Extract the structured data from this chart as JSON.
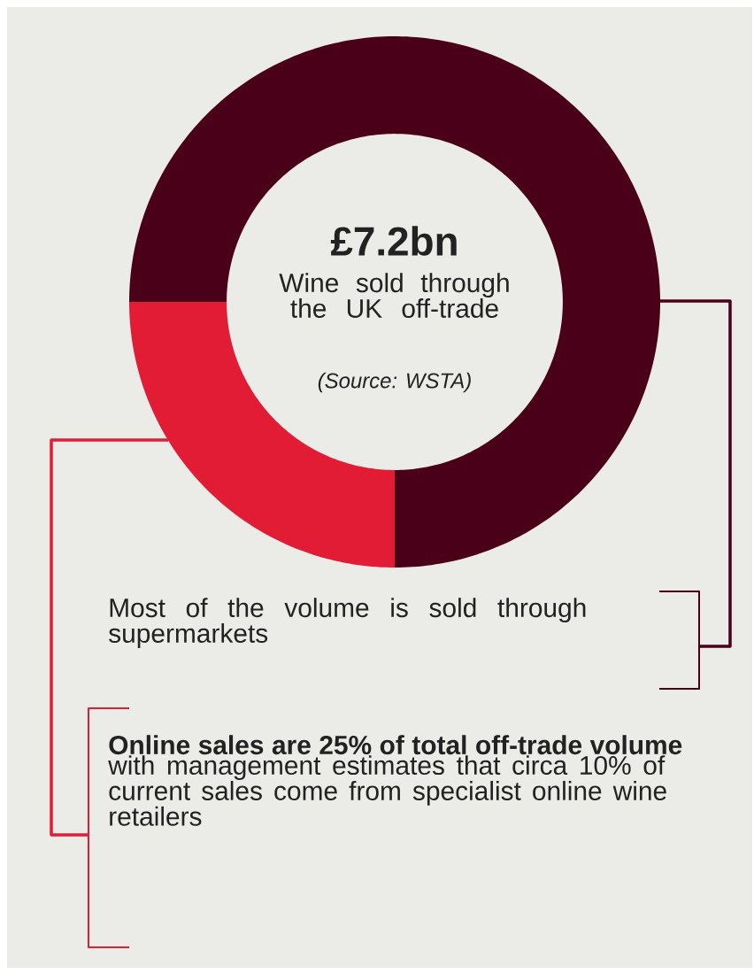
{
  "chart_data": {
    "type": "donut",
    "categories": [
      null,
      null
    ],
    "values": [
      75,
      25
    ],
    "colors": [
      "#4a0018",
      "#e21c34"
    ],
    "annotations": [
      "£7.2bn",
      "Wine sold through the UK off-trade",
      "(Source: WSTA)",
      "Most of the volume is sold through supermarkets",
      "**Online sales are 25% of total off-trade volume** with management estimates that circa 10% of current sales come from specialist online wine retailers"
    ]
  }
}
